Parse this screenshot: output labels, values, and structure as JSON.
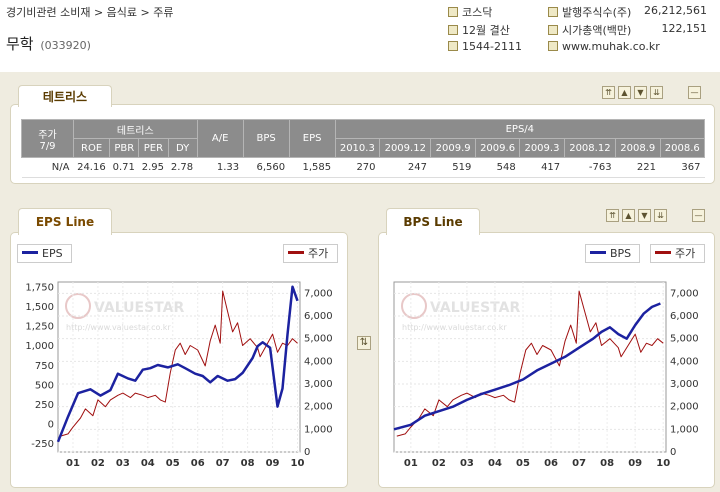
{
  "header": {
    "breadcrumb": "경기비관련 소비재 > 음식료 > 주류",
    "company_name": "무학",
    "company_code": "(033920)",
    "market": "코스닥",
    "fiscal": "12월 결산",
    "phone": "1544-2111",
    "shares_label": "발행주식수(주)",
    "shares_value": "26,212,561",
    "mcap_label": "시가총액(백만)",
    "mcap_value": "122,151",
    "website": "www.muhak.co.kr"
  },
  "tradelist": {
    "tab_label": "테트리스",
    "group_price": "주가",
    "group_price_sub": "7/9",
    "group_tetris": "테트리스",
    "group_eps4": "EPS/4",
    "col_ae": "A/E",
    "col_bps": "BPS",
    "col_eps": "EPS",
    "metric_headers": [
      "ROE",
      "PBR",
      "PER",
      "DY"
    ],
    "period_headers": [
      "2010.3",
      "2009.12",
      "2009.9",
      "2009.6",
      "2009.3",
      "2008.12",
      "2008.9",
      "2008.6"
    ],
    "row": {
      "price": "N/A",
      "metrics": [
        "24.16",
        "0.71",
        "2.95",
        "2.78"
      ],
      "ae": "1.33",
      "bps": "6,560",
      "eps": "1,585",
      "periods": [
        "270",
        "247",
        "519",
        "548",
        "417",
        "-763",
        "221",
        "367"
      ]
    }
  },
  "center_button_icon": "swap-icon",
  "watermark": {
    "brand": "VALUESTAR",
    "url": "http://www.valuestar.co.kr"
  },
  "colors": {
    "line_series": "#1c22a0",
    "price_series": "#a01010",
    "panel_bg": "#efece0"
  },
  "eps_chart": {
    "tab_label": "EPS Line",
    "legend_line": "EPS",
    "legend_price": "주가"
  },
  "bps_chart": {
    "tab_label": "BPS Line",
    "legend_line": "BPS",
    "legend_price": "주가"
  },
  "chart_data": [
    {
      "type": "line",
      "title": "EPS Line",
      "x_ticks": [
        "01",
        "02",
        "03",
        "04",
        "05",
        "06",
        "07",
        "08",
        "09",
        "10"
      ],
      "x_range": [
        2000.9,
        2010.6
      ],
      "left_axis": {
        "ticks": [
          "-250",
          "0",
          "250",
          "500",
          "750",
          "1,000",
          "1,250",
          "1,500",
          "1,750"
        ],
        "range": [
          -350,
          1820
        ]
      },
      "right_axis": {
        "ticks": [
          "0",
          "1,000",
          "2,000",
          "3,000",
          "4,000",
          "5,000",
          "6,000",
          "7,000"
        ],
        "range": [
          0,
          7500
        ]
      },
      "grid": true,
      "series": [
        {
          "name": "EPS",
          "axis": "left",
          "x": [
            2000.9,
            2001.3,
            2001.7,
            2002.2,
            2002.6,
            2003.0,
            2003.3,
            2003.7,
            2004.0,
            2004.3,
            2004.6,
            2004.9,
            2005.3,
            2005.7,
            2006.0,
            2006.4,
            2006.7,
            2007.0,
            2007.3,
            2007.7,
            2008.0,
            2008.3,
            2008.7,
            2008.9,
            2009.1,
            2009.4,
            2009.7,
            2009.9,
            2010.1,
            2010.3,
            2010.5
          ],
          "y": [
            -220,
            100,
            400,
            450,
            370,
            440,
            650,
            590,
            560,
            700,
            720,
            760,
            730,
            770,
            720,
            650,
            620,
            540,
            620,
            560,
            580,
            660,
            850,
            1000,
            1050,
            980,
            230,
            460,
            1150,
            1760,
            1580
          ]
        },
        {
          "name": "주가",
          "axis": "right",
          "x": [
            2001.0,
            2001.3,
            2001.5,
            2001.8,
            2002.0,
            2002.3,
            2002.5,
            2002.8,
            2003.0,
            2003.3,
            2003.5,
            2003.8,
            2004.0,
            2004.3,
            2004.5,
            2004.8,
            2005.0,
            2005.2,
            2005.4,
            2005.6,
            2005.8,
            2006.0,
            2006.2,
            2006.5,
            2006.8,
            2007.0,
            2007.2,
            2007.4,
            2007.5,
            2007.7,
            2007.9,
            2008.1,
            2008.3,
            2008.6,
            2008.9,
            2009.0,
            2009.2,
            2009.5,
            2009.7,
            2009.9,
            2010.1,
            2010.3,
            2010.5
          ],
          "y": [
            700,
            800,
            1100,
            1500,
            1900,
            1600,
            2300,
            2000,
            2300,
            2500,
            2600,
            2400,
            2600,
            2500,
            2400,
            2500,
            2300,
            2200,
            3500,
            4500,
            4800,
            4300,
            4700,
            4500,
            3800,
            4900,
            5600,
            4800,
            7100,
            6200,
            5300,
            5700,
            4700,
            5000,
            4600,
            4200,
            4600,
            5200,
            4400,
            4800,
            4700,
            5000,
            4800
          ]
        }
      ]
    },
    {
      "type": "line",
      "title": "BPS Line",
      "x_ticks": [
        "01",
        "02",
        "03",
        "04",
        "05",
        "06",
        "07",
        "08",
        "09",
        "10"
      ],
      "x_range": [
        2000.9,
        2010.6
      ],
      "right_axis": {
        "ticks": [
          "0",
          "1,000",
          "2,000",
          "3,000",
          "4,000",
          "5,000",
          "6,000",
          "7,000"
        ],
        "range": [
          0,
          7500
        ]
      },
      "grid": true,
      "series": [
        {
          "name": "BPS",
          "axis": "right",
          "x": [
            2000.9,
            2001.5,
            2002.0,
            2002.5,
            2003.0,
            2003.5,
            2004.0,
            2004.5,
            2005.0,
            2005.5,
            2006.0,
            2006.5,
            2007.0,
            2007.5,
            2008.0,
            2008.3,
            2008.6,
            2008.9,
            2009.2,
            2009.5,
            2009.8,
            2010.1,
            2010.4
          ],
          "y": [
            1000,
            1200,
            1600,
            1800,
            2000,
            2300,
            2550,
            2750,
            2950,
            3200,
            3600,
            3900,
            4200,
            4600,
            5000,
            5300,
            5500,
            5200,
            5000,
            5600,
            6100,
            6400,
            6550
          ]
        },
        {
          "name": "주가",
          "axis": "right",
          "x": [
            2001.0,
            2001.3,
            2001.5,
            2001.8,
            2002.0,
            2002.3,
            2002.5,
            2002.8,
            2003.0,
            2003.3,
            2003.5,
            2003.8,
            2004.0,
            2004.3,
            2004.5,
            2004.8,
            2005.0,
            2005.2,
            2005.4,
            2005.6,
            2005.8,
            2006.0,
            2006.2,
            2006.5,
            2006.8,
            2007.0,
            2007.2,
            2007.4,
            2007.5,
            2007.7,
            2007.9,
            2008.1,
            2008.3,
            2008.6,
            2008.9,
            2009.0,
            2009.2,
            2009.5,
            2009.7,
            2009.9,
            2010.1,
            2010.3,
            2010.5
          ],
          "y": [
            700,
            800,
            1100,
            1500,
            1900,
            1600,
            2300,
            2000,
            2300,
            2500,
            2600,
            2400,
            2600,
            2500,
            2400,
            2500,
            2300,
            2200,
            3500,
            4500,
            4800,
            4300,
            4700,
            4500,
            3800,
            4900,
            5600,
            4800,
            7100,
            6200,
            5300,
            5700,
            4700,
            5000,
            4600,
            4200,
            4600,
            5200,
            4400,
            4800,
            4700,
            5000,
            4800
          ]
        }
      ]
    }
  ]
}
